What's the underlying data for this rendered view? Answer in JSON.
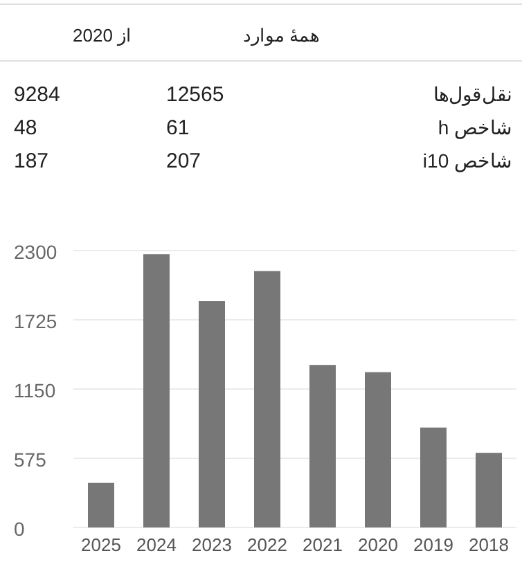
{
  "chart_data": [
    {
      "type": "other",
      "categories": [
        "همهٔ موارد",
        "از 2020"
      ],
      "y_categories": [
        "نقل‌قول‌ها",
        "شاخص h",
        "شاخص i10"
      ],
      "cell_labels": [
        [
          "12565",
          "9284"
        ],
        [
          "61",
          "48"
        ],
        [
          "207",
          "187"
        ]
      ]
    },
    {
      "type": "bar",
      "categories": [
        "2025",
        "2024",
        "2023",
        "2022",
        "2021",
        "2020",
        "2019",
        "2018"
      ],
      "values": [
        370,
        2270,
        1880,
        2130,
        1350,
        1290,
        830,
        620
      ],
      "color": "#777777",
      "ylim": [
        0,
        2300
      ],
      "yticks": [
        0,
        575,
        1150,
        1725,
        2300
      ],
      "grid": "y"
    }
  ]
}
